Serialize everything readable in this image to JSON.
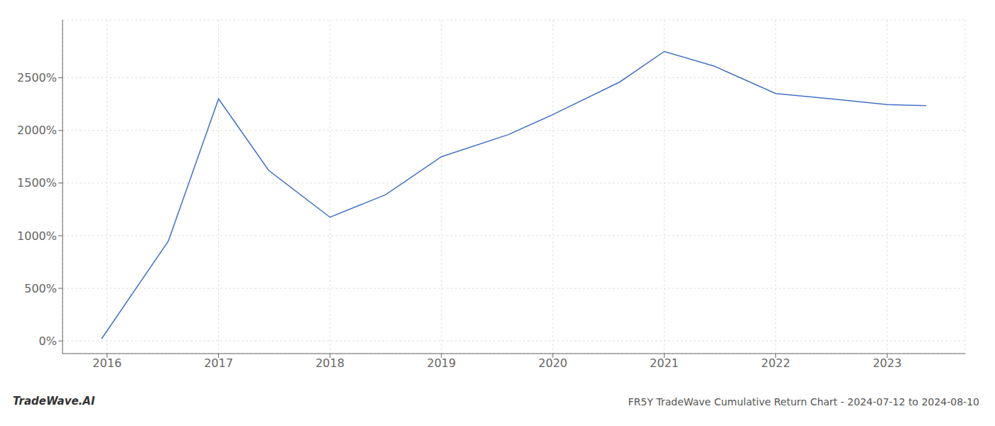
{
  "chart_data": {
    "type": "line",
    "title": "FR5Y TradeWave Cumulative Return Chart - 2024-07-12 to 2024-08-10",
    "annotations": [
      "TradeWave.AI"
    ],
    "x": [
      2015.95,
      2016.55,
      2017.0,
      2017.45,
      2018.0,
      2018.5,
      2019.0,
      2019.6,
      2020.0,
      2020.6,
      2021.0,
      2021.45,
      2022.0,
      2022.5,
      2023.0,
      2023.35
    ],
    "values": [
      20,
      950,
      2300,
      1620,
      1175,
      1390,
      1750,
      1960,
      2150,
      2460,
      2750,
      2610,
      2350,
      2300,
      2245,
      2235
    ],
    "color": "#4472C4",
    "xlim": [
      2015.6,
      2023.7
    ],
    "ylim": [
      -120,
      3050
    ],
    "xticks": [
      2016,
      2017,
      2018,
      2019,
      2020,
      2021,
      2022,
      2023
    ],
    "yticks": [
      {
        "value": 0,
        "label": "0%"
      },
      {
        "value": 500,
        "label": "500%"
      },
      {
        "value": 1000,
        "label": "1000%"
      },
      {
        "value": 1500,
        "label": "1500%"
      },
      {
        "value": 2000,
        "label": "2000%"
      },
      {
        "value": 2500,
        "label": "2500%"
      }
    ],
    "grid": true
  }
}
